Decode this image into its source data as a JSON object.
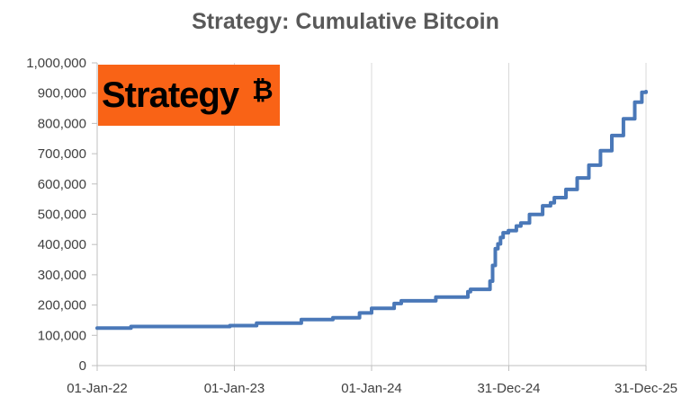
{
  "chart_data": {
    "type": "line",
    "title": "Strategy: Cumulative Bitcoin",
    "xlabel": "",
    "ylabel": "",
    "x_ticks": [
      "01-Jan-22",
      "01-Jan-23",
      "01-Jan-24",
      "31-Dec-24",
      "31-Dec-25"
    ],
    "xlim": [
      "2022-01-01",
      "2025-12-31"
    ],
    "y_ticks": [
      "0",
      "100,000",
      "200,000",
      "300,000",
      "400,000",
      "500,000",
      "600,000",
      "700,000",
      "800,000",
      "900,000",
      "1,000,000"
    ],
    "ylim": [
      0,
      1000000
    ],
    "grid": "vertical",
    "series": [
      {
        "color": "#4a78b8",
        "points": [
          [
            "2022-01-01",
            124000
          ],
          [
            "2022-04-01",
            129000
          ],
          [
            "2022-12-20",
            132000
          ],
          [
            "2023-03-01",
            140000
          ],
          [
            "2023-06-28",
            152000
          ],
          [
            "2023-09-20",
            158000
          ],
          [
            "2023-11-30",
            174000
          ],
          [
            "2024-01-01",
            189000
          ],
          [
            "2024-03-01",
            205000
          ],
          [
            "2024-03-20",
            214000
          ],
          [
            "2024-06-20",
            226000
          ],
          [
            "2024-09-13",
            244000
          ],
          [
            "2024-09-20",
            252000
          ],
          [
            "2024-11-11",
            279000
          ],
          [
            "2024-11-18",
            331000
          ],
          [
            "2024-11-25",
            386000
          ],
          [
            "2024-12-02",
            402000
          ],
          [
            "2024-12-09",
            423000
          ],
          [
            "2024-12-16",
            439000
          ],
          [
            "2024-12-30",
            446000
          ],
          [
            "2025-01-20",
            461000
          ],
          [
            "2025-02-01",
            471000
          ],
          [
            "2025-02-24",
            499000
          ],
          [
            "2025-03-31",
            528000
          ],
          [
            "2025-04-21",
            538000
          ],
          [
            "2025-05-01",
            555000
          ],
          [
            "2025-06-01",
            582000
          ],
          [
            "2025-07-01",
            620000
          ],
          [
            "2025-08-01",
            662000
          ],
          [
            "2025-09-01",
            710000
          ],
          [
            "2025-10-01",
            760000
          ],
          [
            "2025-11-01",
            815000
          ],
          [
            "2025-12-01",
            870000
          ],
          [
            "2025-12-20",
            903000
          ],
          [
            "2025-12-31",
            905000
          ]
        ]
      }
    ]
  },
  "logo": {
    "text": "Strategy",
    "symbol": "₿",
    "background": "#f96316",
    "icon": "strategy-bitcoin-logo"
  }
}
